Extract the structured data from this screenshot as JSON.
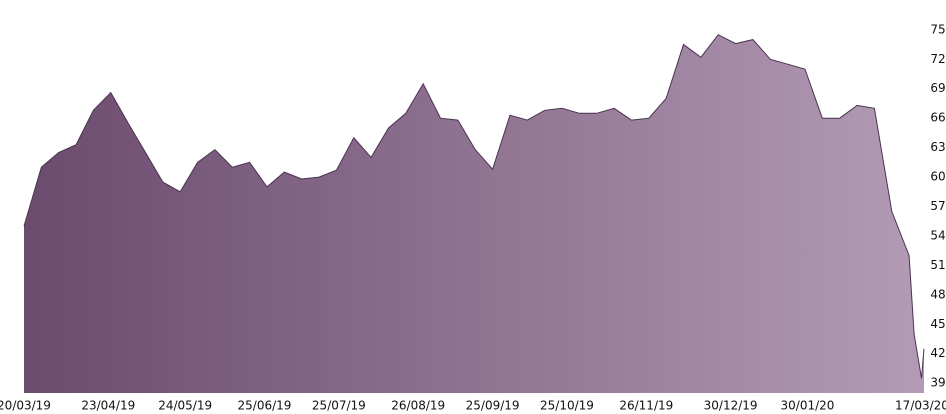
{
  "chart_data": {
    "type": "area",
    "x": [
      "20/03/19",
      "27/03/19",
      "03/04/19",
      "10/04/19",
      "17/04/19",
      "24/04/19",
      "01/05/19",
      "08/05/19",
      "15/05/19",
      "22/05/19",
      "29/05/19",
      "05/06/19",
      "12/06/19",
      "19/06/19",
      "26/06/19",
      "03/07/19",
      "10/07/19",
      "17/07/19",
      "24/07/19",
      "31/07/19",
      "07/08/19",
      "14/08/19",
      "21/08/19",
      "28/08/19",
      "04/09/19",
      "11/09/19",
      "18/09/19",
      "25/09/19",
      "02/10/19",
      "09/10/19",
      "16/10/19",
      "23/10/19",
      "30/10/19",
      "06/11/19",
      "13/11/19",
      "20/11/19",
      "27/11/19",
      "04/12/19",
      "11/12/19",
      "18/12/19",
      "25/12/19",
      "01/01/20",
      "08/01/20",
      "15/01/20",
      "22/01/20",
      "29/01/20",
      "05/02/20",
      "12/02/20",
      "19/02/20",
      "26/02/20",
      "04/03/20",
      "11/03/20",
      "13/03/20",
      "16/03/20",
      "17/03/20"
    ],
    "series": [
      {
        "color": [
          "#6b4b6e",
          "#b39bb5"
        ],
        "line_color": "#4a3350",
        "values": [
          55,
          61,
          62.5,
          63.3,
          66.8,
          68.6,
          65.5,
          62.5,
          59.5,
          58.5,
          61.5,
          62.8,
          61,
          61.5,
          59,
          60.5,
          59.8,
          60,
          60.7,
          64,
          62,
          65,
          66.5,
          69.5,
          66,
          65.8,
          62.8,
          60.8,
          66.3,
          65.8,
          66.8,
          67,
          66.5,
          66.5,
          67,
          65.8,
          66,
          68,
          73.5,
          72.2,
          74.5,
          73.6,
          74,
          72,
          71.5,
          71,
          66,
          66,
          67.3,
          67,
          56.5,
          52,
          44,
          39.5,
          42.5
        ]
      }
    ],
    "xticks": [
      "20/03/19",
      "23/04/19",
      "24/05/19",
      "25/06/19",
      "25/07/19",
      "26/08/19",
      "25/09/19",
      "25/10/19",
      "26/11/19",
      "30/12/19",
      "30/01/20",
      "17/03/20"
    ],
    "ylim": [
      38,
      76
    ],
    "yticks": [
      39,
      42,
      45,
      48,
      51,
      54,
      57,
      60,
      63,
      66,
      69,
      72,
      75
    ]
  }
}
